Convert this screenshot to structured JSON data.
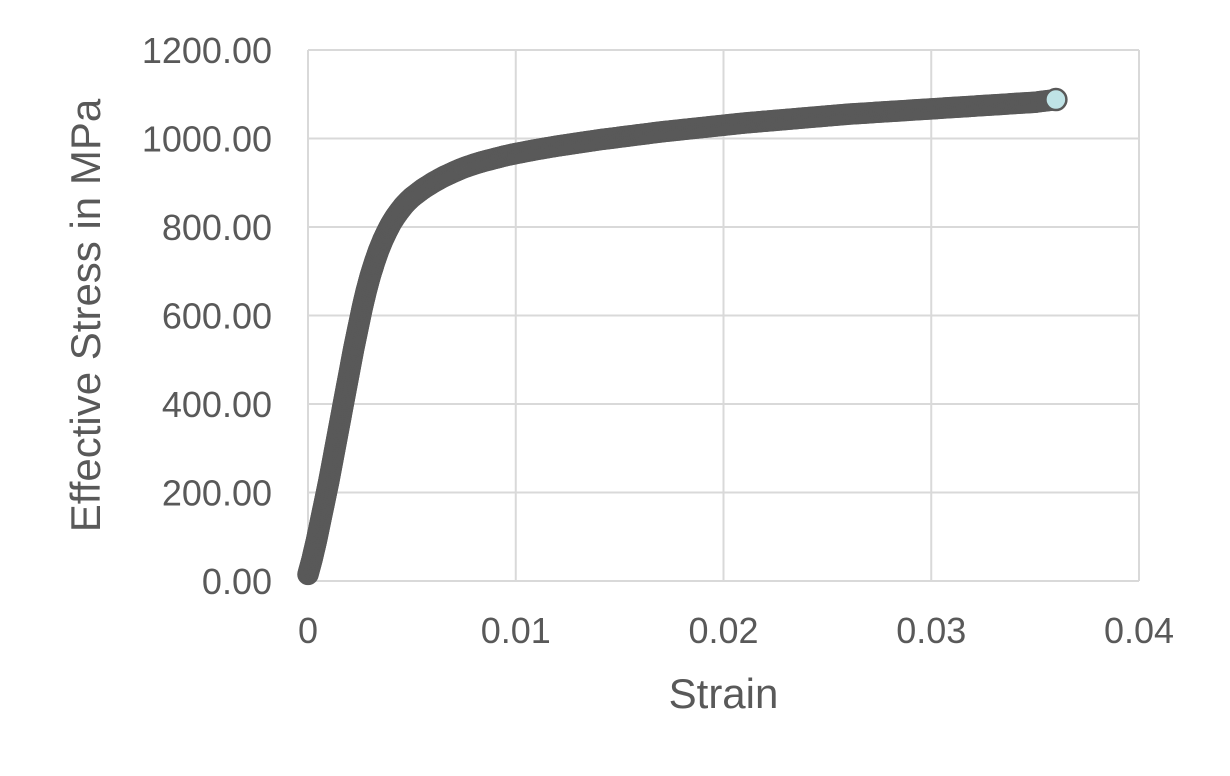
{
  "chart_data": {
    "type": "scatter",
    "title": "",
    "xlabel": "Strain",
    "ylabel": "Effective Stress in MPa",
    "xlim": [
      0,
      0.04
    ],
    "ylim": [
      0,
      1200
    ],
    "x_ticks": [
      "0",
      "0.01",
      "0.02",
      "0.03",
      "0.04"
    ],
    "y_ticks": [
      "0.00",
      "200.00",
      "400.00",
      "600.00",
      "800.00",
      "1000.00",
      "1200.00"
    ],
    "grid": true,
    "legend": "none",
    "marker_fill": "#bfe3e6",
    "marker_edge": "#595959",
    "series": [
      {
        "x": [
          0,
          0.0002,
          0.0004,
          0.0006,
          0.0008,
          0.001,
          0.0012,
          0.0014,
          0.0016,
          0.0018,
          0.002,
          0.0022,
          0.0024,
          0.0026,
          0.0028,
          0.003,
          0.0032,
          0.0034,
          0.0036,
          0.0038,
          0.004,
          0.0042,
          0.0044,
          0.0046,
          0.0048,
          0.005,
          0.0055,
          0.006,
          0.0065,
          0.007,
          0.0075,
          0.008,
          0.0085,
          0.009,
          0.0095,
          0.01,
          0.011,
          0.012,
          0.013,
          0.014,
          0.015,
          0.016,
          0.017,
          0.018,
          0.019,
          0.02,
          0.021,
          0.022,
          0.023,
          0.024,
          0.025,
          0.026,
          0.027,
          0.028,
          0.029,
          0.03,
          0.031,
          0.032,
          0.033,
          0.034,
          0.035,
          0.036
        ],
        "y": [
          15,
          50,
          90,
          135,
          180,
          225,
          275,
          325,
          375,
          425,
          475,
          525,
          570,
          615,
          655,
          690,
          720,
          747,
          770,
          790,
          808,
          823,
          836,
          848,
          858,
          867,
          885,
          900,
          913,
          924,
          934,
          942,
          949,
          955,
          961,
          966,
          975,
          983,
          990,
          997,
          1003,
          1009,
          1015,
          1020,
          1025,
          1030,
          1035,
          1039,
          1043,
          1047,
          1051,
          1055,
          1058,
          1061,
          1064,
          1067,
          1070,
          1073,
          1076,
          1079,
          1082,
          1088
        ]
      }
    ]
  }
}
